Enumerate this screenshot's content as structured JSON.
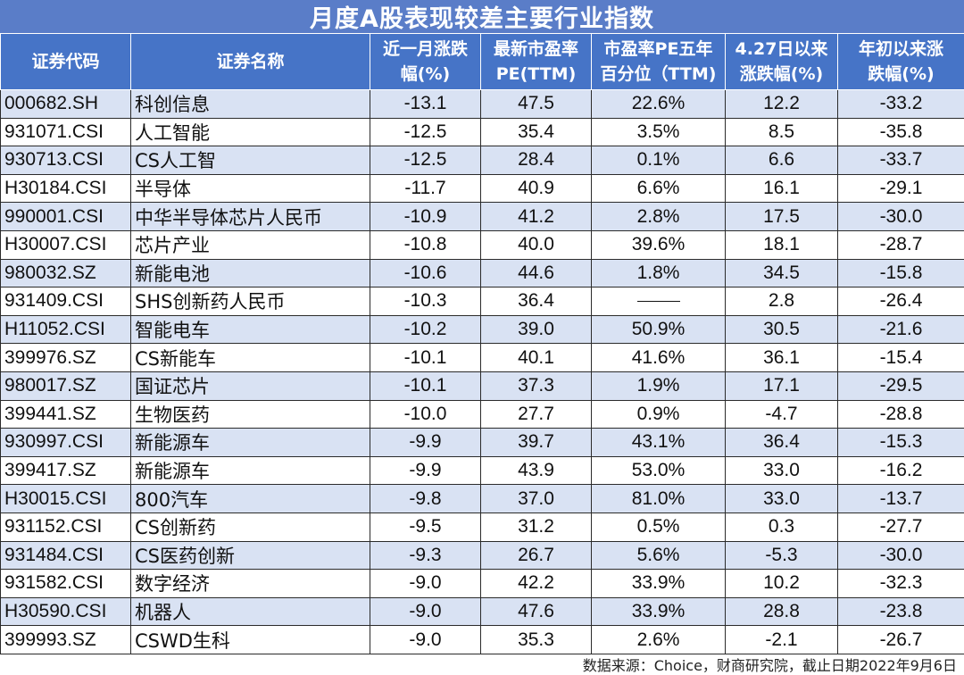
{
  "title": "月度A股表现较差主要行业指数",
  "headers": [
    [
      "证券代码"
    ],
    [
      "证券名称"
    ],
    [
      "近一月涨跌",
      "幅(%)"
    ],
    [
      "最新市盈率",
      "PE(TTM)"
    ],
    [
      "市盈率PE五年",
      "百分位（TTM)"
    ],
    [
      "4.27日以来",
      "涨跌幅(%)"
    ],
    [
      "年初以来涨",
      "跌幅(%)"
    ]
  ],
  "rows": [
    [
      "000682.SH",
      "科创信息",
      "-13.1",
      "47.5",
      "22.6%",
      "12.2",
      "-33.2"
    ],
    [
      "931071.CSI",
      "人工智能",
      "-12.5",
      "35.4",
      "3.5%",
      "8.5",
      "-35.8"
    ],
    [
      "930713.CSI",
      "CS人工智",
      "-12.5",
      "28.4",
      "0.1%",
      "6.6",
      "-33.7"
    ],
    [
      "H30184.CSI",
      "半导体",
      "-11.7",
      "40.9",
      "6.6%",
      "16.1",
      "-29.1"
    ],
    [
      "990001.CSI",
      "中华半导体芯片人民币",
      "-10.9",
      "41.2",
      "2.8%",
      "17.5",
      "-30.0"
    ],
    [
      "H30007.CSI",
      "芯片产业",
      "-10.8",
      "40.0",
      "39.6%",
      "18.1",
      "-28.7"
    ],
    [
      "980032.SZ",
      "新能电池",
      "-10.6",
      "44.6",
      "1.8%",
      "34.5",
      "-15.8"
    ],
    [
      "931409.CSI",
      "SHS创新药人民币",
      "-10.3",
      "36.4",
      "",
      "2.8",
      "-26.4"
    ],
    [
      "H11052.CSI",
      "智能电车",
      "-10.2",
      "39.0",
      "50.9%",
      "30.5",
      "-21.6"
    ],
    [
      "399976.SZ",
      "CS新能车",
      "-10.1",
      "40.1",
      "41.6%",
      "36.1",
      "-15.4"
    ],
    [
      "980017.SZ",
      "国证芯片",
      "-10.1",
      "37.3",
      "1.9%",
      "17.1",
      "-29.5"
    ],
    [
      "399441.SZ",
      "生物医药",
      "-10.0",
      "27.7",
      "0.9%",
      "-4.7",
      "-28.8"
    ],
    [
      "930997.CSI",
      "新能源车",
      "-9.9",
      "39.7",
      "43.1%",
      "36.4",
      "-15.3"
    ],
    [
      "399417.SZ",
      "新能源车",
      "-9.9",
      "43.9",
      "53.0%",
      "33.0",
      "-16.2"
    ],
    [
      "H30015.CSI",
      "800汽车",
      "-9.8",
      "37.0",
      "81.0%",
      "33.0",
      "-13.7"
    ],
    [
      "931152.CSI",
      "CS创新药",
      "-9.5",
      "31.2",
      "0.5%",
      "0.3",
      "-27.7"
    ],
    [
      "931484.CSI",
      "CS医药创新",
      "-9.3",
      "26.7",
      "5.6%",
      "-5.3",
      "-30.0"
    ],
    [
      "931582.CSI",
      "数字经济",
      "-9.0",
      "42.2",
      "33.9%",
      "10.2",
      "-32.3"
    ],
    [
      "H30590.CSI",
      "机器人",
      "-9.0",
      "47.6",
      "33.9%",
      "28.8",
      "-23.8"
    ],
    [
      "399993.SZ",
      "CSWD生科",
      "-9.0",
      "35.3",
      "2.6%",
      "-2.1",
      "-26.7"
    ]
  ],
  "footer": "数据来源：Choice，财商研究院，截止日期2022年9月6日",
  "colors": {
    "title_bg": "#5a7dc8",
    "header_bg": "#4674c7",
    "row_alt": "#d9e2f3"
  }
}
